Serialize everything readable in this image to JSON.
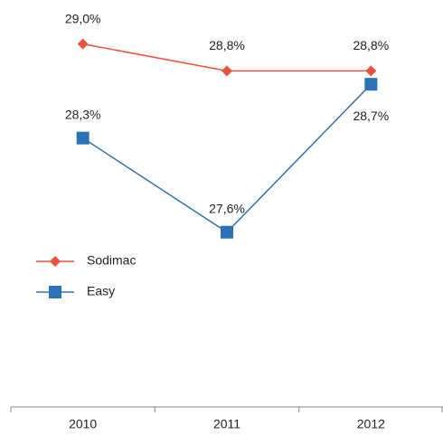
{
  "chart_data": {
    "type": "line",
    "categories": [
      "2010",
      "2011",
      "2012"
    ],
    "series": [
      {
        "name": "Sodimac",
        "color": "#e8533c",
        "marker": "diamond",
        "values": [
          29.0,
          28.8,
          28.8
        ],
        "value_labels": [
          "29,0%",
          "28,8%",
          "28,8%"
        ]
      },
      {
        "name": "Easy",
        "color": "#2b73b6",
        "marker": "square",
        "values": [
          28.3,
          27.6,
          28.7
        ],
        "value_labels": [
          "28,3%",
          "27,6%",
          "28,7%"
        ]
      }
    ],
    "ylim": [
      26.3,
      29.3
    ],
    "legend": "left"
  }
}
